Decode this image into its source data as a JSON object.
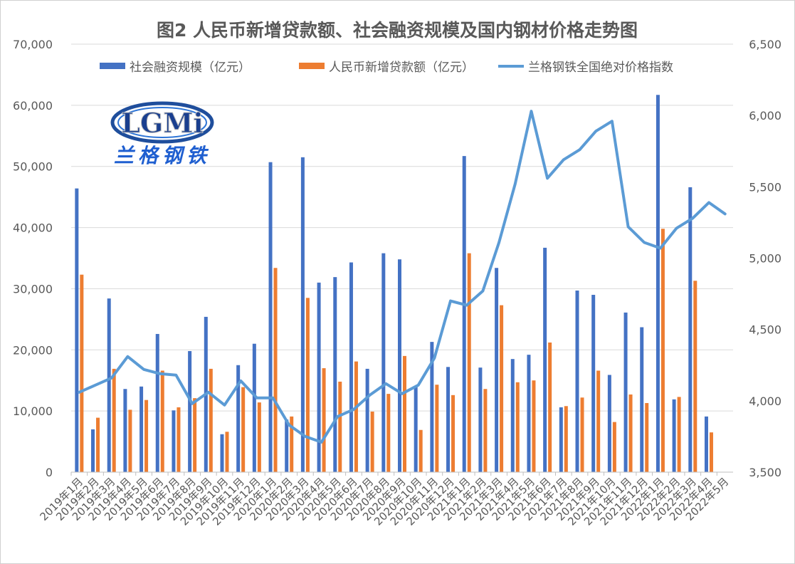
{
  "chart_data": {
    "type": "bar",
    "title": "图2 人民币新增贷款额、社会融资规模及国内钢材价格走势图",
    "categories": [
      "2019年1月",
      "2019年2月",
      "2019年3月",
      "2019年4月",
      "2019年5月",
      "2019年6月",
      "2019年7月",
      "2019年8月",
      "2019年9月",
      "2019年10月",
      "2019年11月",
      "2019年12月",
      "2020年1月",
      "2020年2月",
      "2020年3月",
      "2020年4月",
      "2020年5月",
      "2020年6月",
      "2020年7月",
      "2020年8月",
      "2020年9月",
      "2020年10月",
      "2020年11月",
      "2020年12月",
      "2021年1月",
      "2021年2月",
      "2021年3月",
      "2021年4月",
      "2021年5月",
      "2021年6月",
      "2021年7月",
      "2021年8月",
      "2021年9月",
      "2021年10月",
      "2021年11月",
      "2021年12月",
      "2022年1月",
      "2022年2月",
      "2022年3月",
      "2022年4月",
      "2022年5月"
    ],
    "series": [
      {
        "name": "社会融资规模（亿元）",
        "type": "bar",
        "axis": "left",
        "color": "#4472C4",
        "values": [
          46400,
          7000,
          28400,
          13600,
          14000,
          22600,
          10100,
          19800,
          25400,
          6200,
          17500,
          21000,
          50700,
          8600,
          51500,
          31000,
          31900,
          34300,
          16900,
          35800,
          34800,
          14000,
          21300,
          17200,
          51700,
          17100,
          33400,
          18500,
          19200,
          36700,
          10600,
          29700,
          29000,
          15900,
          26100,
          23700,
          61700,
          11900,
          46600,
          9100,
          0
        ]
      },
      {
        "name": "人民币新增贷款额（亿元）",
        "type": "bar",
        "axis": "left",
        "color": "#ED7D31",
        "values": [
          32300,
          8900,
          16900,
          10200,
          11800,
          16600,
          10600,
          12100,
          16900,
          6600,
          13900,
          11400,
          33400,
          9100,
          28500,
          17000,
          14800,
          18100,
          9900,
          12800,
          19000,
          6900,
          14300,
          12600,
          35800,
          13600,
          27300,
          14700,
          15000,
          21200,
          10800,
          12200,
          16600,
          8200,
          12700,
          11300,
          39800,
          12300,
          31300,
          6500,
          0
        ]
      },
      {
        "name": "兰格钢铁全国绝对价格指数",
        "type": "line",
        "axis": "right",
        "color": "#5B9BD5",
        "values": [
          4060,
          4110,
          4160,
          4310,
          4220,
          4190,
          4180,
          3980,
          4060,
          3970,
          4140,
          4020,
          4020,
          3830,
          3750,
          3710,
          3890,
          3940,
          4040,
          4120,
          4050,
          4110,
          4300,
          4700,
          4670,
          4770,
          5110,
          5520,
          6030,
          5560,
          5690,
          5760,
          5890,
          5960,
          5220,
          5110,
          5070,
          5210,
          5280,
          5390,
          5310
        ]
      }
    ],
    "y_left": {
      "min": 0,
      "max": 70000,
      "ticks": [
        "0",
        "10,000",
        "20,000",
        "30,000",
        "40,000",
        "50,000",
        "60,000",
        "70,000"
      ]
    },
    "y_right": {
      "min": 3500,
      "max": 6500,
      "ticks": [
        "3,500",
        "4,000",
        "4,500",
        "5,000",
        "5,500",
        "6,000",
        "6,500"
      ]
    },
    "grid": true,
    "legend_position": "top"
  },
  "logo": {
    "text": "LGMi",
    "subtext": "兰格钢铁"
  },
  "colors": {
    "bar1": "#4472C4",
    "bar2": "#ED7D31",
    "line": "#5B9BD5",
    "grid": "#d9d9d9",
    "text": "#595959"
  }
}
